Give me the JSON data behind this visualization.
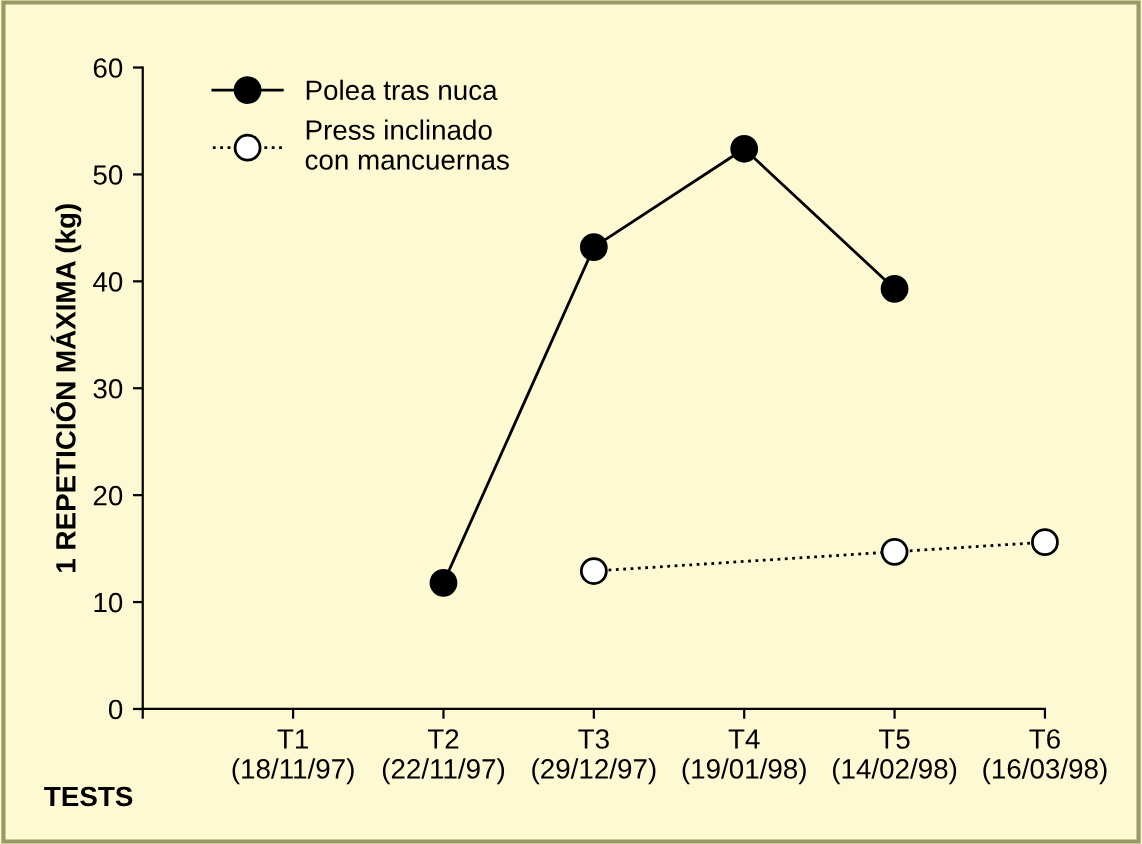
{
  "chart_data": {
    "type": "line",
    "xlabel": "TESTS",
    "ylabel": "1 REPETICIÓN MÁXIMA (kg)",
    "categories": [
      null,
      "T1\n(18/11/97)",
      "T2\n(22/11/97)",
      "T3\n(29/12/97)",
      "T4\n(19/01/98)",
      "T5\n(14/02/98)",
      "T6\n(16/03/98)"
    ],
    "series": [
      {
        "name": "Polea tras nuca",
        "color": "#000000",
        "values": [
          null,
          null,
          11.8,
          43.2,
          52.4,
          39.3,
          null
        ],
        "line_style": "solid"
      },
      {
        "name": "Press inclinado\ncon mancuernas",
        "color": "#ffffff",
        "values": [
          null,
          null,
          null,
          12.9,
          null,
          14.7,
          15.6
        ],
        "line_style": "dotted"
      }
    ],
    "ylim": [
      0,
      60
    ],
    "yticks": [
      0,
      10,
      20,
      30,
      40,
      50,
      60
    ],
    "grid": false,
    "legend": "top left",
    "marker": "circle"
  }
}
